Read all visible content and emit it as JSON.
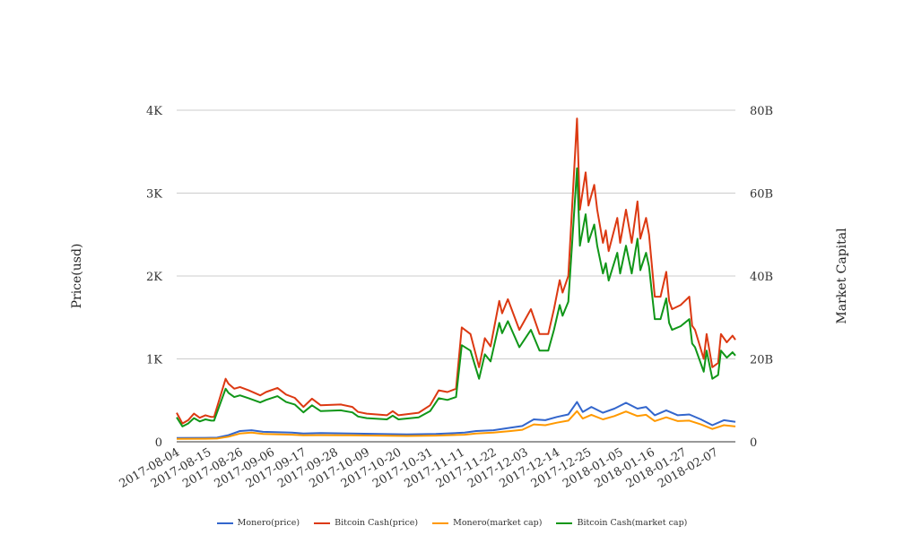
{
  "chart_data": {
    "type": "line",
    "title": "",
    "start_date": "2017-08-04",
    "x_unit": "days since start_date",
    "xlim_days": [
      0,
      194
    ],
    "x_tick_labels": [
      "2017-08-04",
      "2017-08-15",
      "2017-08-26",
      "2017-09-06",
      "2017-09-17",
      "2017-09-28",
      "2017-10-09",
      "2017-10-20",
      "2017-10-31",
      "2017-11-11",
      "2017-11-22",
      "2017-12-03",
      "2017-12-14",
      "2017-12-25",
      "2018-01-05",
      "2018-01-16",
      "2018-01-27",
      "2018-02-07"
    ],
    "x_tick_step_days": 11,
    "ylabel_left": "Price(usd)",
    "ylabel_right": "Market Capital",
    "ylim_left": [
      0,
      4000
    ],
    "ylim_right": [
      0,
      80
    ],
    "left_ticks": [
      {
        "v": 0,
        "label": "0"
      },
      {
        "v": 1000,
        "label": "1K"
      },
      {
        "v": 2000,
        "label": "2K"
      },
      {
        "v": 3000,
        "label": "3K"
      },
      {
        "v": 4000,
        "label": "4K"
      }
    ],
    "right_ticks": [
      {
        "v": 0,
        "label": "0"
      },
      {
        "v": 20,
        "label": "20B"
      },
      {
        "v": 40,
        "label": "40B"
      },
      {
        "v": 60,
        "label": "60B"
      },
      {
        "v": 80,
        "label": "80B"
      }
    ],
    "grid": true,
    "legend_position": "bottom",
    "series": [
      {
        "name": "Monero(price)",
        "axis": "left",
        "color": "#3366cc",
        "points": [
          [
            0,
            45
          ],
          [
            10,
            48
          ],
          [
            14,
            50
          ],
          [
            18,
            80
          ],
          [
            22,
            130
          ],
          [
            26,
            140
          ],
          [
            30,
            120
          ],
          [
            40,
            110
          ],
          [
            44,
            100
          ],
          [
            50,
            105
          ],
          [
            60,
            100
          ],
          [
            70,
            95
          ],
          [
            80,
            90
          ],
          [
            90,
            95
          ],
          [
            100,
            110
          ],
          [
            104,
            130
          ],
          [
            110,
            140
          ],
          [
            116,
            170
          ],
          [
            120,
            190
          ],
          [
            124,
            270
          ],
          [
            128,
            260
          ],
          [
            132,
            300
          ],
          [
            136,
            330
          ],
          [
            139,
            480
          ],
          [
            141,
            360
          ],
          [
            144,
            420
          ],
          [
            148,
            350
          ],
          [
            152,
            400
          ],
          [
            156,
            470
          ],
          [
            160,
            400
          ],
          [
            163,
            420
          ],
          [
            166,
            320
          ],
          [
            170,
            380
          ],
          [
            174,
            320
          ],
          [
            178,
            330
          ],
          [
            182,
            270
          ],
          [
            186,
            200
          ],
          [
            190,
            260
          ],
          [
            194,
            240
          ]
        ]
      },
      {
        "name": "Bitcoin Cash(price)",
        "axis": "left",
        "color": "#dc3912",
        "points": [
          [
            0,
            350
          ],
          [
            2,
            220
          ],
          [
            4,
            260
          ],
          [
            6,
            340
          ],
          [
            8,
            290
          ],
          [
            10,
            320
          ],
          [
            12,
            300
          ],
          [
            13,
            300
          ],
          [
            17,
            760
          ],
          [
            18,
            700
          ],
          [
            20,
            640
          ],
          [
            22,
            660
          ],
          [
            25,
            620
          ],
          [
            29,
            560
          ],
          [
            31,
            600
          ],
          [
            35,
            650
          ],
          [
            38,
            570
          ],
          [
            41,
            530
          ],
          [
            44,
            420
          ],
          [
            47,
            520
          ],
          [
            50,
            440
          ],
          [
            57,
            450
          ],
          [
            61,
            420
          ],
          [
            63,
            360
          ],
          [
            66,
            340
          ],
          [
            73,
            320
          ],
          [
            75,
            370
          ],
          [
            77,
            320
          ],
          [
            84,
            350
          ],
          [
            88,
            440
          ],
          [
            91,
            620
          ],
          [
            94,
            600
          ],
          [
            97,
            640
          ],
          [
            99,
            1380
          ],
          [
            102,
            1300
          ],
          [
            105,
            900
          ],
          [
            107,
            1250
          ],
          [
            109,
            1150
          ],
          [
            112,
            1700
          ],
          [
            113,
            1550
          ],
          [
            115,
            1720
          ],
          [
            119,
            1350
          ],
          [
            123,
            1600
          ],
          [
            126,
            1300
          ],
          [
            129,
            1300
          ],
          [
            131,
            1600
          ],
          [
            133,
            1950
          ],
          [
            134,
            1800
          ],
          [
            136,
            2000
          ],
          [
            139,
            3900
          ],
          [
            140,
            2800
          ],
          [
            142,
            3250
          ],
          [
            143,
            2850
          ],
          [
            145,
            3100
          ],
          [
            146,
            2800
          ],
          [
            148,
            2400
          ],
          [
            149,
            2550
          ],
          [
            150,
            2300
          ],
          [
            153,
            2700
          ],
          [
            154,
            2400
          ],
          [
            156,
            2800
          ],
          [
            158,
            2400
          ],
          [
            160,
            2900
          ],
          [
            161,
            2450
          ],
          [
            163,
            2700
          ],
          [
            164,
            2500
          ],
          [
            166,
            1750
          ],
          [
            168,
            1750
          ],
          [
            170,
            2050
          ],
          [
            171,
            1700
          ],
          [
            172,
            1600
          ],
          [
            175,
            1650
          ],
          [
            178,
            1750
          ],
          [
            179,
            1400
          ],
          [
            180,
            1350
          ],
          [
            183,
            1000
          ],
          [
            184,
            1300
          ],
          [
            186,
            900
          ],
          [
            188,
            950
          ],
          [
            189,
            1300
          ],
          [
            191,
            1200
          ],
          [
            193,
            1280
          ],
          [
            194,
            1230
          ]
        ]
      },
      {
        "name": "Monero(market cap)",
        "axis": "right",
        "color": "#ff9900",
        "points": [
          [
            0,
            0.7
          ],
          [
            10,
            0.74
          ],
          [
            14,
            0.78
          ],
          [
            18,
            1.24
          ],
          [
            22,
            2.0
          ],
          [
            26,
            2.2
          ],
          [
            30,
            1.9
          ],
          [
            40,
            1.7
          ],
          [
            44,
            1.55
          ],
          [
            50,
            1.6
          ],
          [
            60,
            1.55
          ],
          [
            70,
            1.5
          ],
          [
            80,
            1.4
          ],
          [
            90,
            1.5
          ],
          [
            100,
            1.7
          ],
          [
            104,
            2.0
          ],
          [
            110,
            2.2
          ],
          [
            116,
            2.6
          ],
          [
            120,
            2.9
          ],
          [
            124,
            4.2
          ],
          [
            128,
            4.0
          ],
          [
            132,
            4.6
          ],
          [
            136,
            5.1
          ],
          [
            139,
            7.4
          ],
          [
            141,
            5.6
          ],
          [
            144,
            6.5
          ],
          [
            148,
            5.4
          ],
          [
            152,
            6.2
          ],
          [
            156,
            7.3
          ],
          [
            160,
            6.2
          ],
          [
            163,
            6.5
          ],
          [
            166,
            5.0
          ],
          [
            170,
            5.9
          ],
          [
            174,
            5.0
          ],
          [
            178,
            5.1
          ],
          [
            182,
            4.2
          ],
          [
            186,
            3.1
          ],
          [
            190,
            4.0
          ],
          [
            194,
            3.7
          ]
        ]
      },
      {
        "name": "Bitcoin Cash(market cap)",
        "axis": "right",
        "color": "#109618",
        "points": [
          [
            0,
            5.9
          ],
          [
            2,
            3.7
          ],
          [
            4,
            4.4
          ],
          [
            6,
            5.7
          ],
          [
            8,
            4.9
          ],
          [
            10,
            5.4
          ],
          [
            12,
            5.1
          ],
          [
            13,
            5.1
          ],
          [
            17,
            12.8
          ],
          [
            18,
            11.8
          ],
          [
            20,
            10.8
          ],
          [
            22,
            11.2
          ],
          [
            25,
            10.5
          ],
          [
            29,
            9.5
          ],
          [
            31,
            10.1
          ],
          [
            35,
            11
          ],
          [
            38,
            9.6
          ],
          [
            41,
            9
          ],
          [
            44,
            7.1
          ],
          [
            47,
            8.8
          ],
          [
            50,
            7.4
          ],
          [
            57,
            7.6
          ],
          [
            61,
            7.1
          ],
          [
            63,
            6.1
          ],
          [
            66,
            5.7
          ],
          [
            73,
            5.4
          ],
          [
            75,
            6.3
          ],
          [
            77,
            5.4
          ],
          [
            84,
            5.9
          ],
          [
            88,
            7.4
          ],
          [
            91,
            10.5
          ],
          [
            94,
            10.1
          ],
          [
            97,
            10.8
          ],
          [
            99,
            23.3
          ],
          [
            102,
            22
          ],
          [
            105,
            15.2
          ],
          [
            107,
            21.1
          ],
          [
            109,
            19.4
          ],
          [
            112,
            28.7
          ],
          [
            113,
            26.2
          ],
          [
            115,
            29.1
          ],
          [
            119,
            22.8
          ],
          [
            123,
            27
          ],
          [
            126,
            22
          ],
          [
            129,
            22
          ],
          [
            131,
            27
          ],
          [
            133,
            33
          ],
          [
            134,
            30.4
          ],
          [
            136,
            33.8
          ],
          [
            139,
            66
          ],
          [
            140,
            47.3
          ],
          [
            142,
            54.9
          ],
          [
            143,
            48.2
          ],
          [
            145,
            52.4
          ],
          [
            146,
            47.3
          ],
          [
            148,
            40.6
          ],
          [
            149,
            43.1
          ],
          [
            150,
            38.9
          ],
          [
            153,
            45.6
          ],
          [
            154,
            40.6
          ],
          [
            156,
            47.3
          ],
          [
            158,
            40.6
          ],
          [
            160,
            49
          ],
          [
            161,
            41.4
          ],
          [
            163,
            45.6
          ],
          [
            164,
            42.3
          ],
          [
            166,
            29.6
          ],
          [
            168,
            29.6
          ],
          [
            170,
            34.6
          ],
          [
            171,
            28.7
          ],
          [
            172,
            27
          ],
          [
            175,
            27.9
          ],
          [
            178,
            29.6
          ],
          [
            179,
            23.7
          ],
          [
            180,
            22.8
          ],
          [
            183,
            16.9
          ],
          [
            184,
            22
          ],
          [
            186,
            15.2
          ],
          [
            188,
            16.1
          ],
          [
            189,
            22
          ],
          [
            191,
            20.3
          ],
          [
            193,
            21.6
          ],
          [
            194,
            20.8
          ]
        ]
      }
    ]
  }
}
